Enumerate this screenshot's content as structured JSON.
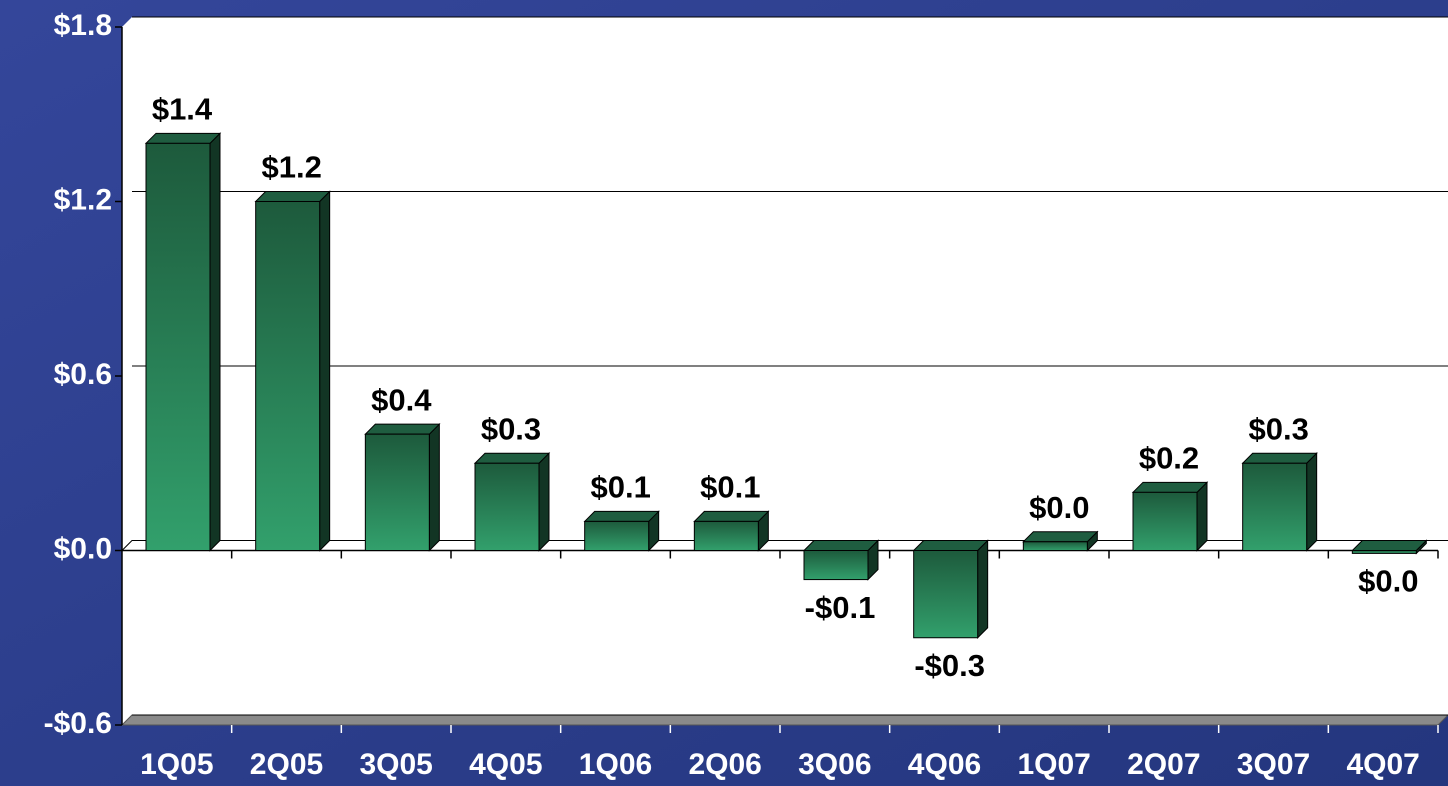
{
  "chart_data": {
    "type": "bar3d",
    "categories": [
      "1Q05",
      "2Q05",
      "3Q05",
      "4Q05",
      "1Q06",
      "2Q06",
      "3Q06",
      "4Q06",
      "1Q07",
      "2Q07",
      "3Q07",
      "4Q07"
    ],
    "values": [
      1.4,
      1.2,
      0.4,
      0.3,
      0.1,
      0.1,
      -0.1,
      -0.3,
      0.03,
      0.2,
      0.3,
      -0.01
    ],
    "value_labels": [
      "$1.4",
      "$1.2",
      "$0.4",
      "$0.3",
      "$0.1",
      "$0.1",
      "-$0.1",
      "-$0.3",
      "$0.0",
      "$0.2",
      "$0.3",
      "$0.0"
    ],
    "color": "#2e9966",
    "ylim": [
      -0.6,
      1.8
    ],
    "yticks": [
      {
        "value": -0.6,
        "label": "-$0.6"
      },
      {
        "value": 0.0,
        "label": "$0.0"
      },
      {
        "value": 0.6,
        "label": "$0.6"
      },
      {
        "value": 1.2,
        "label": "$1.2"
      },
      {
        "value": 1.8,
        "label": "$1.8"
      }
    ],
    "grid": true
  }
}
